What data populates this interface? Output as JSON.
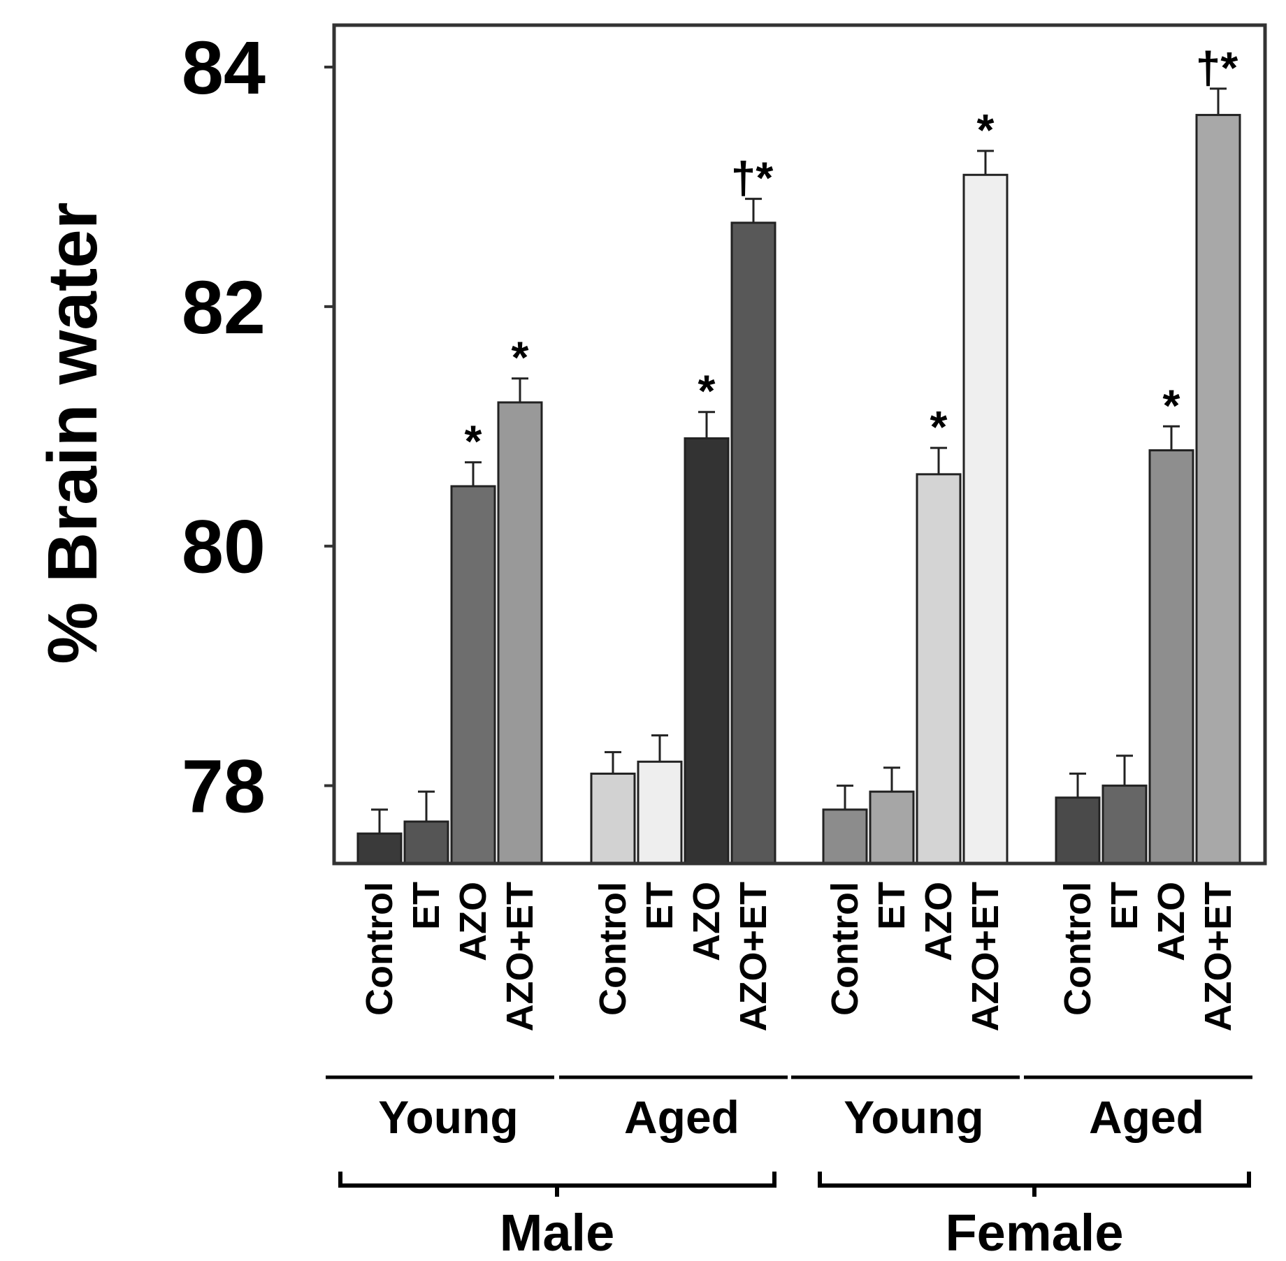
{
  "chart_data": {
    "type": "bar",
    "title": "",
    "xlabel": "",
    "ylabel": "% Brain water",
    "ylim": [
      77.35,
      84.35
    ],
    "yticks": [
      78,
      80,
      82,
      84
    ],
    "ytick_labels": [
      "84",
      "82",
      "80",
      "78"
    ],
    "grid": false,
    "categories": [
      "Control",
      "ET",
      "AZO",
      "AZO+ET"
    ],
    "groups": [
      {
        "sex": "Male",
        "age": "Young",
        "bars": [
          {
            "label": "Control",
            "value": 77.6,
            "error": 0.2,
            "color": "#3a3a3a",
            "sig": ""
          },
          {
            "label": "ET",
            "value": 77.7,
            "error": 0.25,
            "color": "#555555",
            "sig": ""
          },
          {
            "label": "AZO",
            "value": 80.5,
            "error": 0.2,
            "color": "#6e6e6e",
            "sig": "*"
          },
          {
            "label": "AZO+ET",
            "value": 81.2,
            "error": 0.2,
            "color": "#999999",
            "sig": "*"
          }
        ]
      },
      {
        "sex": "Male",
        "age": "Aged",
        "bars": [
          {
            "label": "Control",
            "value": 78.1,
            "error": 0.18,
            "color": "#d2d2d2",
            "sig": ""
          },
          {
            "label": "ET",
            "value": 78.2,
            "error": 0.22,
            "color": "#eeeeee",
            "sig": ""
          },
          {
            "label": "AZO",
            "value": 80.9,
            "error": 0.22,
            "color": "#333333",
            "sig": "*"
          },
          {
            "label": "AZO+ET",
            "value": 82.7,
            "error": 0.2,
            "color": "#585858",
            "sig": "†*"
          }
        ]
      },
      {
        "sex": "Female",
        "age": "Young",
        "bars": [
          {
            "label": "Control",
            "value": 77.8,
            "error": 0.2,
            "color": "#8c8c8c",
            "sig": ""
          },
          {
            "label": "ET",
            "value": 77.95,
            "error": 0.2,
            "color": "#a6a6a6",
            "sig": ""
          },
          {
            "label": "AZO",
            "value": 80.6,
            "error": 0.22,
            "color": "#d4d4d4",
            "sig": "*"
          },
          {
            "label": "AZO+ET",
            "value": 83.1,
            "error": 0.2,
            "color": "#efefef",
            "sig": "*"
          }
        ]
      },
      {
        "sex": "Female",
        "age": "Aged",
        "bars": [
          {
            "label": "Control",
            "value": 77.9,
            "error": 0.2,
            "color": "#4a4a4a",
            "sig": ""
          },
          {
            "label": "ET",
            "value": 78.0,
            "error": 0.25,
            "color": "#666666",
            "sig": ""
          },
          {
            "label": "AZO",
            "value": 80.8,
            "error": 0.2,
            "color": "#8e8e8e",
            "sig": "*"
          },
          {
            "label": "AZO+ET",
            "value": 83.6,
            "error": 0.22,
            "color": "#a8a8a8",
            "sig": "†*"
          }
        ]
      }
    ],
    "age_labels": [
      "Young",
      "Aged",
      "Young",
      "Aged"
    ],
    "sex_labels": [
      "Male",
      "Female"
    ]
  }
}
